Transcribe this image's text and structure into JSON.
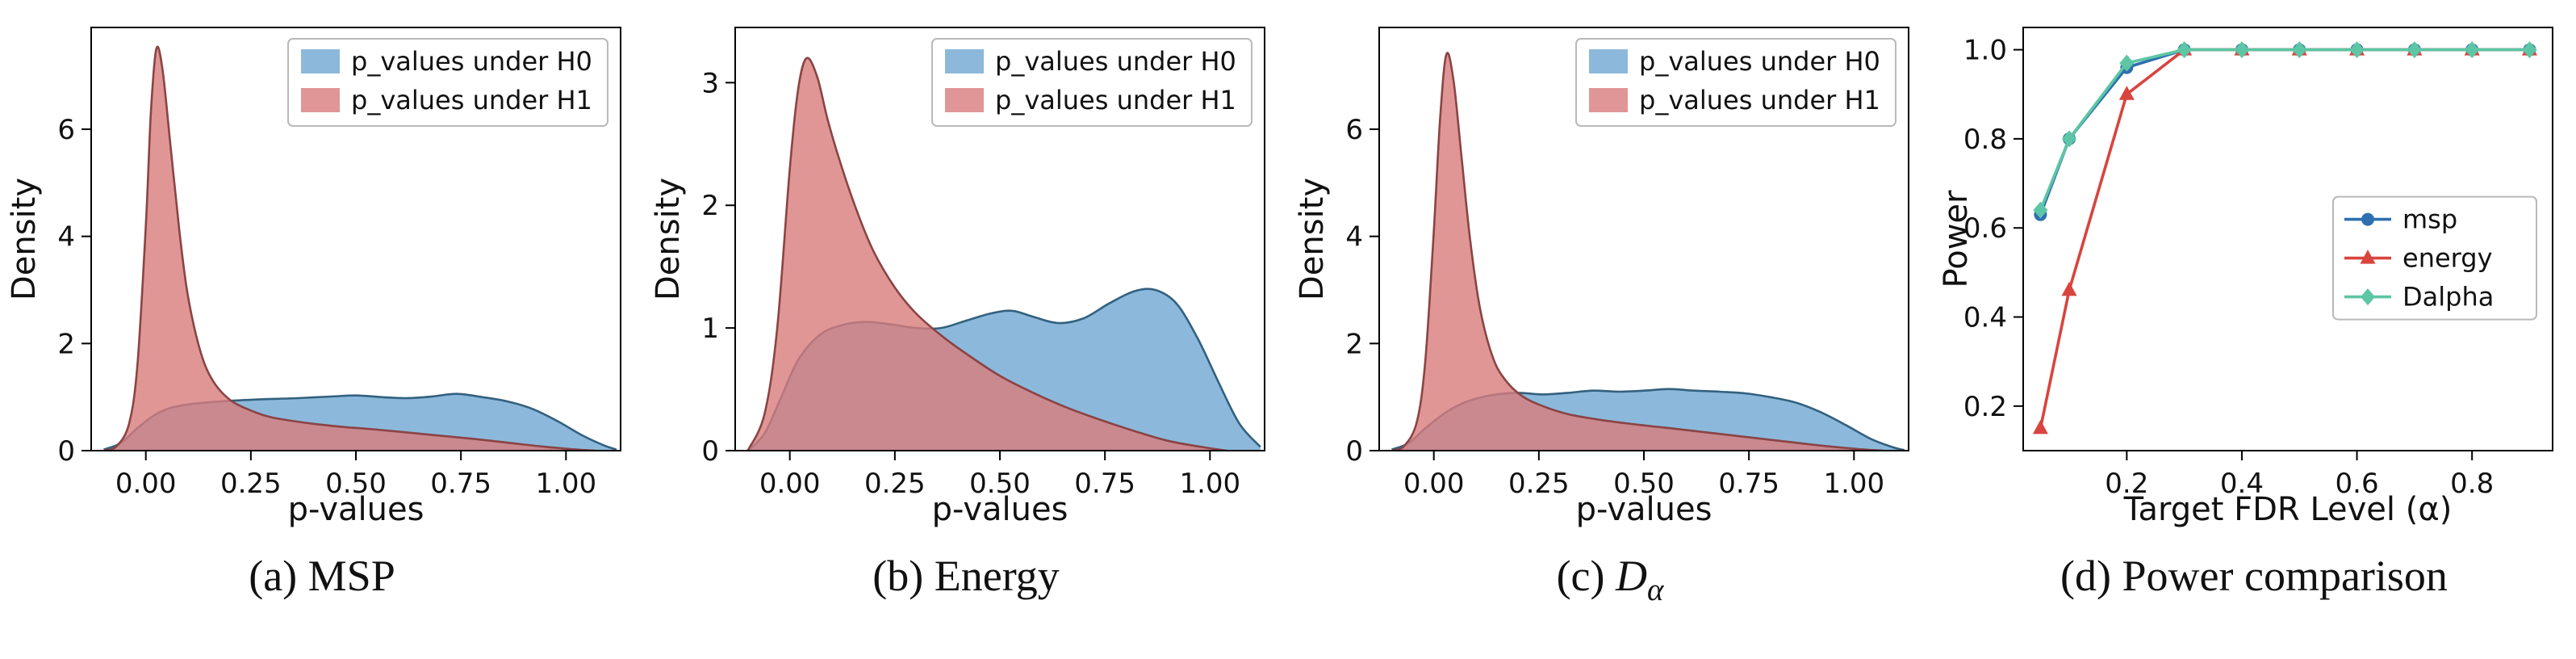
{
  "figure": {
    "background": "#ffffff",
    "caption_row": [
      "(a) MSP",
      "(b) Energy",
      "(c) Dα",
      "(d) Power comparison"
    ]
  },
  "chart_data": [
    {
      "id": "msp",
      "type": "density",
      "caption_segments": [
        {
          "text": "(a) MSP"
        }
      ],
      "xlabel": "p-values",
      "ylabel": "Density",
      "xlim": [
        -0.13,
        1.13
      ],
      "ylim": [
        0,
        7.9
      ],
      "xticks": [
        0,
        0.25,
        0.5,
        0.75,
        1.0
      ],
      "xtick_labels": [
        "0.00",
        "0.25",
        "0.50",
        "0.75",
        "1.00"
      ],
      "yticks": [
        0,
        2,
        4,
        6
      ],
      "ytick_labels": [
        "0",
        "2",
        "4",
        "6"
      ],
      "legend": {
        "style": "patch",
        "position": "upper-right",
        "entries": [
          {
            "label": "p_values under H0",
            "color": "#8cb9db"
          },
          {
            "label": "p_values under H1",
            "color": "#e09696"
          }
        ]
      },
      "series": [
        {
          "name": "H0",
          "fill": "#6fa8d2",
          "stroke": "#33617f",
          "opacity": 0.8,
          "points": [
            [
              -0.1,
              0.02
            ],
            [
              -0.06,
              0.14
            ],
            [
              -0.02,
              0.42
            ],
            [
              0.02,
              0.66
            ],
            [
              0.06,
              0.8
            ],
            [
              0.12,
              0.88
            ],
            [
              0.2,
              0.93
            ],
            [
              0.28,
              0.96
            ],
            [
              0.36,
              0.98
            ],
            [
              0.44,
              1.01
            ],
            [
              0.5,
              1.03
            ],
            [
              0.56,
              1.0
            ],
            [
              0.62,
              0.98
            ],
            [
              0.68,
              1.01
            ],
            [
              0.74,
              1.06
            ],
            [
              0.8,
              1.0
            ],
            [
              0.86,
              0.92
            ],
            [
              0.92,
              0.78
            ],
            [
              0.98,
              0.55
            ],
            [
              1.04,
              0.28
            ],
            [
              1.09,
              0.1
            ],
            [
              1.12,
              0.02
            ]
          ]
        },
        {
          "name": "H1",
          "fill": "#d97c7c",
          "stroke": "#8a4444",
          "opacity": 0.8,
          "points": [
            [
              -0.1,
              0.0
            ],
            [
              -0.07,
              0.08
            ],
            [
              -0.04,
              0.5
            ],
            [
              -0.02,
              1.6
            ],
            [
              0.0,
              4.2
            ],
            [
              0.012,
              6.3
            ],
            [
              0.025,
              7.5
            ],
            [
              0.04,
              7.1
            ],
            [
              0.06,
              5.6
            ],
            [
              0.08,
              4.1
            ],
            [
              0.1,
              2.9
            ],
            [
              0.13,
              1.85
            ],
            [
              0.16,
              1.3
            ],
            [
              0.2,
              0.95
            ],
            [
              0.25,
              0.75
            ],
            [
              0.3,
              0.62
            ],
            [
              0.38,
              0.52
            ],
            [
              0.46,
              0.45
            ],
            [
              0.54,
              0.4
            ],
            [
              0.62,
              0.34
            ],
            [
              0.7,
              0.28
            ],
            [
              0.78,
              0.22
            ],
            [
              0.86,
              0.15
            ],
            [
              0.94,
              0.08
            ],
            [
              1.01,
              0.03
            ],
            [
              1.07,
              0.0
            ]
          ]
        }
      ]
    },
    {
      "id": "energy",
      "type": "density",
      "caption_segments": [
        {
          "text": "(b) Energy"
        }
      ],
      "xlabel": "p-values",
      "ylabel": "Density",
      "xlim": [
        -0.13,
        1.13
      ],
      "ylim": [
        0,
        3.45
      ],
      "xticks": [
        0,
        0.25,
        0.5,
        0.75,
        1.0
      ],
      "xtick_labels": [
        "0.00",
        "0.25",
        "0.50",
        "0.75",
        "1.00"
      ],
      "yticks": [
        0,
        1,
        2,
        3
      ],
      "ytick_labels": [
        "0",
        "1",
        "2",
        "3"
      ],
      "legend": {
        "style": "patch",
        "position": "upper-right",
        "entries": [
          {
            "label": "p_values under H0",
            "color": "#8cb9db"
          },
          {
            "label": "p_values under H1",
            "color": "#e09696"
          }
        ]
      },
      "series": [
        {
          "name": "H0",
          "fill": "#6fa8d2",
          "stroke": "#33617f",
          "opacity": 0.8,
          "points": [
            [
              -0.1,
              0.0
            ],
            [
              -0.06,
              0.14
            ],
            [
              -0.02,
              0.44
            ],
            [
              0.02,
              0.74
            ],
            [
              0.07,
              0.94
            ],
            [
              0.12,
              1.02
            ],
            [
              0.18,
              1.05
            ],
            [
              0.24,
              1.03
            ],
            [
              0.3,
              1.0
            ],
            [
              0.36,
              1.0
            ],
            [
              0.42,
              1.06
            ],
            [
              0.48,
              1.12
            ],
            [
              0.53,
              1.14
            ],
            [
              0.58,
              1.09
            ],
            [
              0.64,
              1.04
            ],
            [
              0.7,
              1.08
            ],
            [
              0.76,
              1.2
            ],
            [
              0.82,
              1.3
            ],
            [
              0.87,
              1.31
            ],
            [
              0.92,
              1.2
            ],
            [
              0.97,
              0.92
            ],
            [
              1.02,
              0.56
            ],
            [
              1.07,
              0.22
            ],
            [
              1.12,
              0.03
            ]
          ]
        },
        {
          "name": "H1",
          "fill": "#d97c7c",
          "stroke": "#8a4444",
          "opacity": 0.8,
          "points": [
            [
              -0.1,
              0.0
            ],
            [
              -0.06,
              0.3
            ],
            [
              -0.03,
              1.0
            ],
            [
              0.0,
              2.3
            ],
            [
              0.02,
              2.95
            ],
            [
              0.04,
              3.2
            ],
            [
              0.065,
              3.05
            ],
            [
              0.09,
              2.7
            ],
            [
              0.12,
              2.35
            ],
            [
              0.16,
              1.95
            ],
            [
              0.2,
              1.62
            ],
            [
              0.25,
              1.33
            ],
            [
              0.3,
              1.12
            ],
            [
              0.36,
              0.94
            ],
            [
              0.42,
              0.79
            ],
            [
              0.5,
              0.61
            ],
            [
              0.58,
              0.47
            ],
            [
              0.66,
              0.35
            ],
            [
              0.74,
              0.25
            ],
            [
              0.82,
              0.16
            ],
            [
              0.9,
              0.08
            ],
            [
              0.98,
              0.03
            ],
            [
              1.04,
              0.0
            ]
          ]
        }
      ]
    },
    {
      "id": "dalpha",
      "type": "density",
      "caption_segments": [
        {
          "text": "(c) "
        },
        {
          "text": "D",
          "italic": true
        },
        {
          "text": "α",
          "italic": true,
          "sub": true
        }
      ],
      "xlabel": "p-values",
      "ylabel": "Density",
      "xlim": [
        -0.13,
        1.13
      ],
      "ylim": [
        0,
        7.9
      ],
      "xticks": [
        0,
        0.25,
        0.5,
        0.75,
        1.0
      ],
      "xtick_labels": [
        "0.00",
        "0.25",
        "0.50",
        "0.75",
        "1.00"
      ],
      "yticks": [
        0,
        2,
        4,
        6
      ],
      "ytick_labels": [
        "0",
        "2",
        "4",
        "6"
      ],
      "legend": {
        "style": "patch",
        "position": "upper-right",
        "entries": [
          {
            "label": "p_values under H0",
            "color": "#8cb9db"
          },
          {
            "label": "p_values under H1",
            "color": "#e09696"
          }
        ]
      },
      "series": [
        {
          "name": "H0",
          "fill": "#6fa8d2",
          "stroke": "#33617f",
          "opacity": 0.8,
          "points": [
            [
              -0.1,
              0.02
            ],
            [
              -0.06,
              0.14
            ],
            [
              -0.02,
              0.42
            ],
            [
              0.03,
              0.72
            ],
            [
              0.08,
              0.92
            ],
            [
              0.14,
              1.04
            ],
            [
              0.2,
              1.08
            ],
            [
              0.26,
              1.05
            ],
            [
              0.32,
              1.08
            ],
            [
              0.38,
              1.12
            ],
            [
              0.44,
              1.1
            ],
            [
              0.5,
              1.12
            ],
            [
              0.56,
              1.15
            ],
            [
              0.62,
              1.12
            ],
            [
              0.68,
              1.1
            ],
            [
              0.74,
              1.07
            ],
            [
              0.8,
              1.0
            ],
            [
              0.86,
              0.9
            ],
            [
              0.92,
              0.72
            ],
            [
              0.98,
              0.48
            ],
            [
              1.04,
              0.22
            ],
            [
              1.09,
              0.07
            ],
            [
              1.12,
              0.01
            ]
          ]
        },
        {
          "name": "H1",
          "fill": "#d97c7c",
          "stroke": "#8a4444",
          "opacity": 0.8,
          "points": [
            [
              -0.1,
              0.0
            ],
            [
              -0.07,
              0.09
            ],
            [
              -0.04,
              0.55
            ],
            [
              -0.02,
              1.7
            ],
            [
              0.0,
              4.1
            ],
            [
              0.015,
              6.2
            ],
            [
              0.03,
              7.4
            ],
            [
              0.047,
              6.9
            ],
            [
              0.067,
              5.4
            ],
            [
              0.087,
              3.9
            ],
            [
              0.11,
              2.65
            ],
            [
              0.14,
              1.75
            ],
            [
              0.17,
              1.32
            ],
            [
              0.21,
              1.02
            ],
            [
              0.26,
              0.83
            ],
            [
              0.32,
              0.68
            ],
            [
              0.4,
              0.57
            ],
            [
              0.48,
              0.49
            ],
            [
              0.56,
              0.42
            ],
            [
              0.66,
              0.33
            ],
            [
              0.76,
              0.24
            ],
            [
              0.86,
              0.15
            ],
            [
              0.94,
              0.08
            ],
            [
              1.01,
              0.03
            ],
            [
              1.07,
              0.0
            ]
          ]
        }
      ]
    },
    {
      "id": "power",
      "type": "line",
      "caption_segments": [
        {
          "text": "(d) Power comparison"
        }
      ],
      "xlabel": "Target FDR Level (α)",
      "ylabel": "Power",
      "xlim": [
        0.02,
        0.94
      ],
      "ylim": [
        0.1,
        1.05
      ],
      "xticks": [
        0.2,
        0.4,
        0.6,
        0.8
      ],
      "xtick_labels": [
        "0.2",
        "0.4",
        "0.6",
        "0.8"
      ],
      "yticks": [
        0.2,
        0.4,
        0.6,
        0.8,
        1.0
      ],
      "ytick_labels": [
        "0.2",
        "0.4",
        "0.6",
        "0.8",
        "1.0"
      ],
      "legend": {
        "style": "line",
        "position": "center-right",
        "entries": [
          {
            "label": "msp",
            "color": "#2d6fb0",
            "marker": "circle"
          },
          {
            "label": "energy",
            "color": "#d9443e",
            "marker": "triangle"
          },
          {
            "label": "Dalpha",
            "color": "#5dc6a4",
            "marker": "diamond"
          }
        ]
      },
      "x": [
        0.05,
        0.1,
        0.2,
        0.3,
        0.4,
        0.5,
        0.6,
        0.7,
        0.8,
        0.9
      ],
      "series": [
        {
          "name": "msp",
          "color": "#2d6fb0",
          "marker": "circle",
          "x": [
            0.05,
            0.1,
            0.2,
            0.3,
            0.4,
            0.5,
            0.6,
            0.7,
            0.8,
            0.9
          ],
          "y": [
            0.63,
            0.8,
            0.96,
            1.0,
            1.0,
            1.0,
            1.0,
            1.0,
            1.0,
            1.0
          ]
        },
        {
          "name": "energy",
          "color": "#d9443e",
          "marker": "triangle",
          "x": [
            0.05,
            0.1,
            0.2,
            0.3,
            0.4,
            0.5,
            0.6,
            0.7,
            0.8,
            0.9
          ],
          "y": [
            0.15,
            0.46,
            0.9,
            1.0,
            1.0,
            1.0,
            1.0,
            1.0,
            1.0,
            1.0
          ]
        },
        {
          "name": "Dalpha",
          "color": "#5dc6a4",
          "marker": "diamond",
          "x": [
            0.05,
            0.1,
            0.2,
            0.3,
            0.4,
            0.5,
            0.6,
            0.7,
            0.8,
            0.9
          ],
          "y": [
            0.64,
            0.8,
            0.97,
            1.0,
            1.0,
            1.0,
            1.0,
            1.0,
            1.0,
            1.0
          ]
        }
      ]
    }
  ]
}
